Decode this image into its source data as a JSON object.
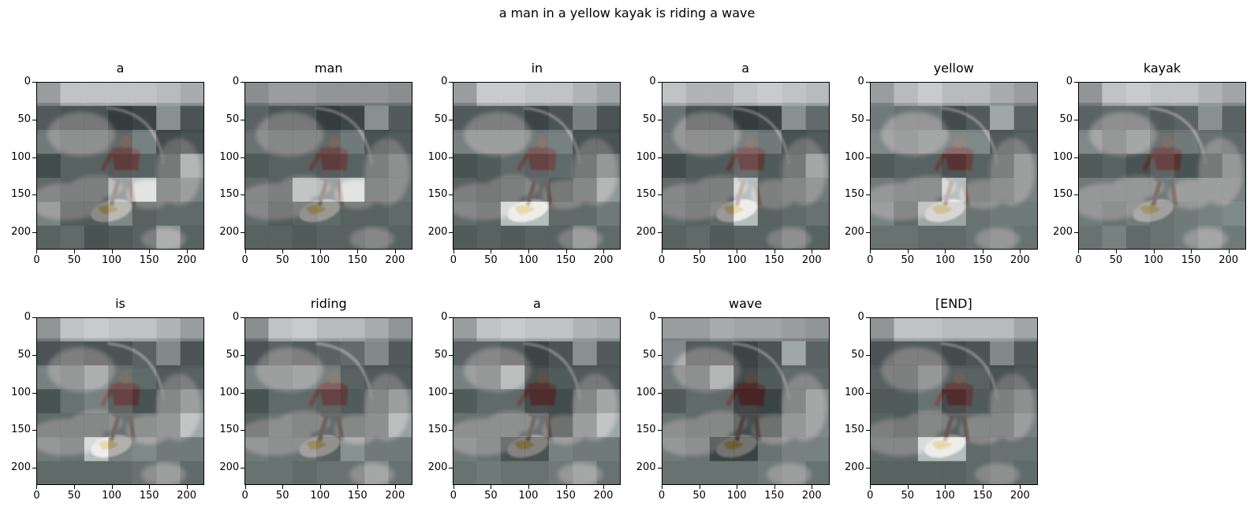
{
  "chart_data": {
    "type": "heatmap",
    "title": "a man in a yellow kayak is riding a wave",
    "image_extent": [
      0,
      224
    ],
    "xticks": [
      0,
      50,
      100,
      150,
      200
    ],
    "yticks": [
      0,
      50,
      100,
      150,
      200
    ],
    "colormap": "gray",
    "layout": "2 rows x 6 columns",
    "panels": [
      {
        "title": "a",
        "attention": [
          [
            0.6,
            0.85,
            0.85,
            0.85,
            0.85,
            0.8,
            0.7
          ],
          [
            0.35,
            0.3,
            0.3,
            0.15,
            0.2,
            0.7,
            0.3
          ],
          [
            0.5,
            0.45,
            0.45,
            0.4,
            0.55,
            0.2,
            0.25
          ],
          [
            0.2,
            0.35,
            0.35,
            0.3,
            0.35,
            0.3,
            0.7
          ],
          [
            0.4,
            0.35,
            0.35,
            0.75,
            1,
            0.45,
            0.55
          ],
          [
            0.55,
            0.3,
            0.3,
            0.6,
            0.35,
            0.4,
            0.4
          ],
          [
            0.35,
            0.4,
            0.25,
            0.3,
            0.35,
            0.65,
            0.35
          ]
        ]
      },
      {
        "title": "man",
        "attention": [
          [
            0.5,
            0.6,
            0.6,
            0.55,
            0.55,
            0.55,
            0.5
          ],
          [
            0.4,
            0.3,
            0.3,
            0.15,
            0.2,
            0.7,
            0.35
          ],
          [
            0.45,
            0.4,
            0.4,
            0.4,
            0.5,
            0.25,
            0.3
          ],
          [
            0.3,
            0.35,
            0.35,
            0.3,
            0.35,
            0.35,
            0.45
          ],
          [
            0.4,
            0.35,
            0.8,
            0.75,
            1,
            0.4,
            0.45
          ],
          [
            0.4,
            0.3,
            0.35,
            0.4,
            0.35,
            0.35,
            0.4
          ],
          [
            0.35,
            0.35,
            0.3,
            0.35,
            0.35,
            0.4,
            0.35
          ]
        ]
      },
      {
        "title": "in",
        "attention": [
          [
            0.6,
            0.9,
            0.9,
            0.85,
            0.85,
            0.75,
            0.65
          ],
          [
            0.35,
            0.35,
            0.35,
            0.2,
            0.3,
            0.6,
            0.3
          ],
          [
            0.55,
            0.55,
            0.55,
            0.5,
            0.55,
            0.25,
            0.25
          ],
          [
            0.25,
            0.3,
            0.4,
            0.35,
            0.4,
            0.3,
            0.5
          ],
          [
            0.35,
            0.3,
            0.35,
            0.4,
            0.3,
            0.4,
            0.7
          ],
          [
            0.4,
            0.35,
            0.95,
            0.95,
            0.4,
            0.4,
            0.5
          ],
          [
            0.3,
            0.35,
            0.3,
            0.35,
            0.35,
            0.55,
            0.4
          ]
        ]
      },
      {
        "title": "a",
        "attention": [
          [
            0.85,
            0.75,
            0.75,
            0.85,
            0.9,
            0.85,
            0.8
          ],
          [
            0.5,
            0.3,
            0.3,
            0.15,
            0.2,
            0.7,
            0.45
          ],
          [
            0.5,
            0.45,
            0.45,
            0.55,
            0.5,
            0.25,
            0.3
          ],
          [
            0.2,
            0.3,
            0.3,
            0.4,
            0.3,
            0.3,
            0.6
          ],
          [
            0.4,
            0.35,
            0.35,
            0.95,
            0.35,
            0.4,
            0.5
          ],
          [
            0.4,
            0.35,
            0.4,
            0.95,
            0.35,
            0.4,
            0.45
          ],
          [
            0.35,
            0.4,
            0.3,
            0.35,
            0.35,
            0.45,
            0.35
          ]
        ]
      },
      {
        "title": "yellow",
        "attention": [
          [
            0.6,
            0.8,
            0.9,
            0.8,
            0.8,
            0.7,
            0.6
          ],
          [
            0.55,
            0.5,
            0.5,
            0.25,
            0.35,
            0.85,
            0.4
          ],
          [
            0.6,
            0.55,
            0.6,
            0.6,
            0.6,
            0.3,
            0.35
          ],
          [
            0.3,
            0.35,
            0.35,
            0.25,
            0.35,
            0.35,
            0.55
          ],
          [
            0.5,
            0.45,
            0.45,
            0.95,
            0.4,
            0.45,
            0.55
          ],
          [
            0.55,
            0.4,
            0.8,
            0.8,
            0.45,
            0.5,
            0.5
          ],
          [
            0.45,
            0.45,
            0.4,
            0.4,
            0.45,
            0.5,
            0.45
          ]
        ]
      },
      {
        "title": "kayak",
        "attention": [
          [
            0.55,
            0.85,
            0.9,
            0.85,
            0.85,
            0.75,
            0.65
          ],
          [
            0.4,
            0.45,
            0.45,
            0.35,
            0.4,
            0.7,
            0.4
          ],
          [
            0.6,
            0.5,
            0.6,
            0.45,
            0.5,
            0.45,
            0.4
          ],
          [
            0.3,
            0.35,
            0.25,
            0.35,
            0.25,
            0.3,
            0.5
          ],
          [
            0.5,
            0.5,
            0.5,
            0.5,
            0.55,
            0.55,
            0.55
          ],
          [
            0.5,
            0.45,
            0.5,
            0.45,
            0.5,
            0.55,
            0.6
          ],
          [
            0.45,
            0.55,
            0.4,
            0.45,
            0.5,
            0.6,
            0.5
          ]
        ]
      },
      {
        "title": "is",
        "attention": [
          [
            0.55,
            0.85,
            0.9,
            0.85,
            0.85,
            0.75,
            0.6
          ],
          [
            0.3,
            0.35,
            0.3,
            0.3,
            0.4,
            0.65,
            0.3
          ],
          [
            0.55,
            0.5,
            0.65,
            0.45,
            0.4,
            0.3,
            0.35
          ],
          [
            0.25,
            0.45,
            0.55,
            0.35,
            0.25,
            0.4,
            0.55
          ],
          [
            0.4,
            0.4,
            0.4,
            0.45,
            0.45,
            0.5,
            0.8
          ],
          [
            0.5,
            0.45,
            0.95,
            0.55,
            0.6,
            0.5,
            0.5
          ],
          [
            0.4,
            0.4,
            0.4,
            0.4,
            0.45,
            0.55,
            0.4
          ]
        ]
      },
      {
        "title": "riding",
        "attention": [
          [
            0.5,
            0.85,
            0.9,
            0.8,
            0.8,
            0.7,
            0.55
          ],
          [
            0.3,
            0.4,
            0.35,
            0.4,
            0.45,
            0.65,
            0.35
          ],
          [
            0.55,
            0.55,
            0.6,
            0.55,
            0.35,
            0.3,
            0.3
          ],
          [
            0.25,
            0.4,
            0.4,
            0.35,
            0.3,
            0.4,
            0.55
          ],
          [
            0.35,
            0.45,
            0.4,
            0.4,
            0.4,
            0.45,
            0.75
          ],
          [
            0.5,
            0.45,
            0.45,
            0.35,
            0.65,
            0.5,
            0.5
          ],
          [
            0.45,
            0.45,
            0.4,
            0.45,
            0.45,
            0.6,
            0.45
          ]
        ]
      },
      {
        "title": "a",
        "attention": [
          [
            0.6,
            0.85,
            0.9,
            0.85,
            0.85,
            0.75,
            0.7
          ],
          [
            0.4,
            0.4,
            0.35,
            0.2,
            0.3,
            0.7,
            0.35
          ],
          [
            0.55,
            0.5,
            0.75,
            0.25,
            0.3,
            0.3,
            0.3
          ],
          [
            0.3,
            0.4,
            0.4,
            0.2,
            0.2,
            0.4,
            0.6
          ],
          [
            0.45,
            0.45,
            0.45,
            0.45,
            0.25,
            0.55,
            0.8
          ],
          [
            0.5,
            0.45,
            0.25,
            0.25,
            0.55,
            0.5,
            0.5
          ],
          [
            0.45,
            0.5,
            0.45,
            0.45,
            0.5,
            0.6,
            0.45
          ]
        ]
      },
      {
        "title": "wave",
        "attention": [
          [
            0.6,
            0.6,
            0.7,
            0.65,
            0.65,
            0.6,
            0.55
          ],
          [
            0.65,
            0.35,
            0.35,
            0.2,
            0.3,
            0.85,
            0.4
          ],
          [
            0.5,
            0.45,
            0.7,
            0.2,
            0.3,
            0.4,
            0.4
          ],
          [
            0.3,
            0.4,
            0.4,
            0.15,
            0.15,
            0.4,
            0.6
          ],
          [
            0.45,
            0.4,
            0.4,
            0.2,
            0.25,
            0.5,
            0.6
          ],
          [
            0.5,
            0.45,
            0.15,
            0.15,
            0.45,
            0.55,
            0.55
          ],
          [
            0.45,
            0.45,
            0.45,
            0.45,
            0.5,
            0.55,
            0.45
          ]
        ]
      },
      {
        "title": "[END]",
        "attention": [
          [
            0.55,
            0.85,
            0.85,
            0.8,
            0.8,
            0.8,
            0.65
          ],
          [
            0.3,
            0.35,
            0.35,
            0.25,
            0.3,
            0.65,
            0.35
          ],
          [
            0.35,
            0.35,
            0.5,
            0.35,
            0.35,
            0.25,
            0.3
          ],
          [
            0.3,
            0.3,
            0.45,
            0.2,
            0.3,
            0.35,
            0.45
          ],
          [
            0.35,
            0.3,
            0.4,
            0.35,
            0.4,
            0.4,
            0.55
          ],
          [
            0.4,
            0.4,
            0.95,
            0.95,
            0.4,
            0.45,
            0.45
          ],
          [
            0.35,
            0.35,
            0.35,
            0.35,
            0.4,
            0.45,
            0.4
          ]
        ]
      }
    ]
  }
}
